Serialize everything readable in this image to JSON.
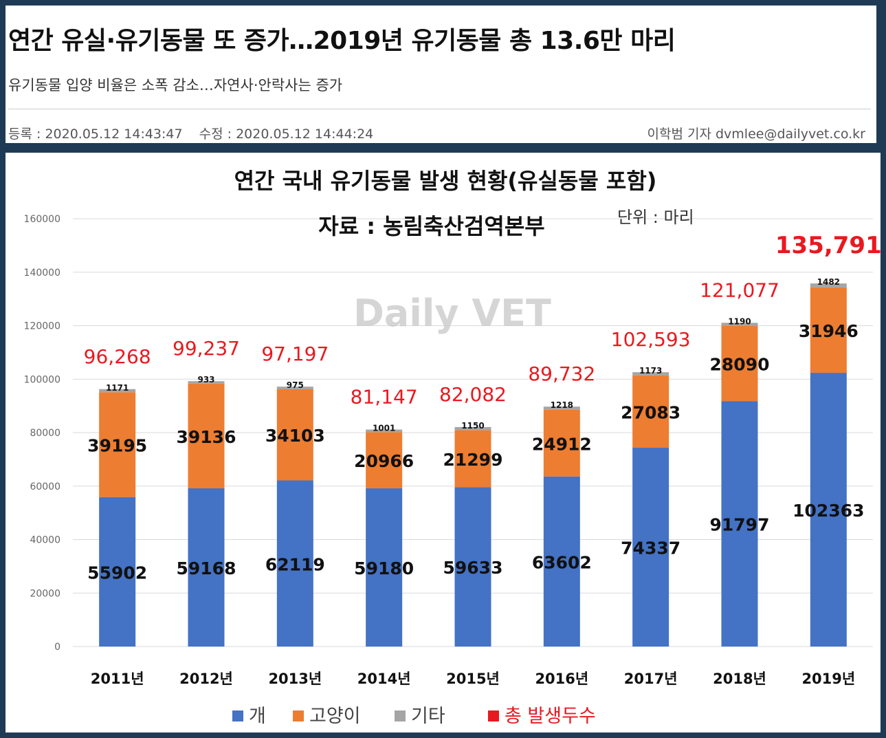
{
  "article": {
    "headline": "연간 유실·유기동물 또 증가…2019년 유기동물 총 13.6만 마리",
    "subheadline": "유기동물 입양 비율은 소폭 감소…자연사·안락사는 증가",
    "registered": "등록 : 2020.05.12 14:43:47",
    "modified": "수정 : 2020.05.12 14:44:24",
    "byline": "이학범 기자 dvmlee@dailyvet.co.kr"
  },
  "chart_data": {
    "type": "bar",
    "stacked": true,
    "title": "연간 국내 유기동물 발생 현황(유실동물 포함)",
    "subtitle": "자료 : 농림축산검역본부",
    "unit_note": "단위 : 마리",
    "watermark": "Daily VET",
    "categories": [
      "2011년",
      "2012년",
      "2013년",
      "2014년",
      "2015년",
      "2016년",
      "2017년",
      "2018년",
      "2019년"
    ],
    "series": [
      {
        "name": "개",
        "color": "#4472c4",
        "values": [
          55902,
          59168,
          62119,
          59180,
          59633,
          63602,
          74337,
          91797,
          102363
        ]
      },
      {
        "name": "고양이",
        "color": "#ed7d31",
        "values": [
          39195,
          39136,
          34103,
          20966,
          21299,
          24912,
          27083,
          28090,
          31946
        ]
      },
      {
        "name": "기타",
        "color": "#a5a5a5",
        "values": [
          1171,
          933,
          975,
          1001,
          1150,
          1218,
          1173,
          1190,
          1482
        ]
      }
    ],
    "totals": {
      "name": "총 발생두수",
      "color": "#e8191f",
      "labels": [
        "96,268",
        "99,237",
        "97,197",
        "81,147",
        "82,082",
        "89,732",
        "102,593",
        "121,077",
        "135,791"
      ]
    },
    "yticks": [
      "0",
      "20000",
      "40000",
      "60000",
      "80000",
      "100000",
      "120000",
      "140000",
      "160000"
    ],
    "ylim": [
      0,
      160000
    ],
    "grid": true,
    "legend_position": "bottom"
  }
}
